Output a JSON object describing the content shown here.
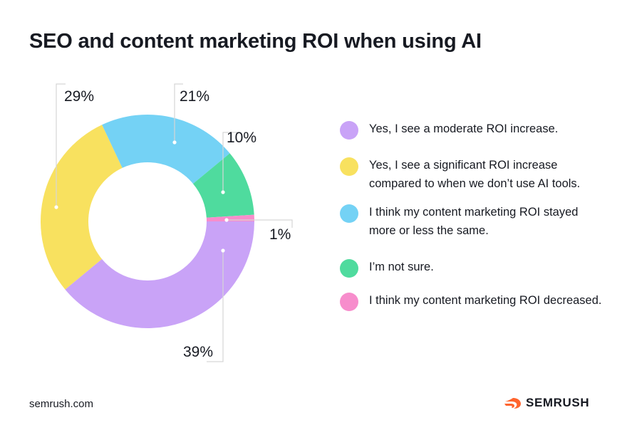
{
  "title": "SEO and content marketing ROI when using AI",
  "chart_data": {
    "type": "pie",
    "donut": true,
    "slices": [
      {
        "label": "Yes, I see a moderate ROI increase.",
        "value": 39,
        "display": "39%",
        "color": "#c9a3f7"
      },
      {
        "label": "Yes, I see a significant ROI increase compared to when we don’t use AI tools.",
        "value": 29,
        "display": "29%",
        "color": "#f8e15f"
      },
      {
        "label": "I think my content marketing ROI stayed more or less the same.",
        "value": 21,
        "display": "21%",
        "color": "#74d2f5"
      },
      {
        "label": "I’m not sure.",
        "value": 10,
        "display": "10%",
        "color": "#4fdb9e"
      },
      {
        "label": "I think my content marketing ROI decreased.",
        "value": 1,
        "display": "1%",
        "color": "#f78dcc"
      }
    ]
  },
  "legend": [
    {
      "text": "Yes, I see a moderate ROI increase.",
      "color": "#c9a3f7"
    },
    {
      "text": "Yes, I see a significant ROI increase compared to when we don’t use AI tools.",
      "color": "#f8e15f"
    },
    {
      "text": "I think my content marketing ROI stayed more or less the same.",
      "color": "#74d2f5"
    },
    {
      "text": "I’m not sure.",
      "color": "#4fdb9e"
    },
    {
      "text": "I think my content marketing ROI decreased.",
      "color": "#f78dcc"
    }
  ],
  "footer": {
    "source": "semrush.com",
    "brand": "SEMRUSH",
    "brand_icon": "semrush-fire-logo-icon",
    "brand_color": "#ff642d"
  }
}
